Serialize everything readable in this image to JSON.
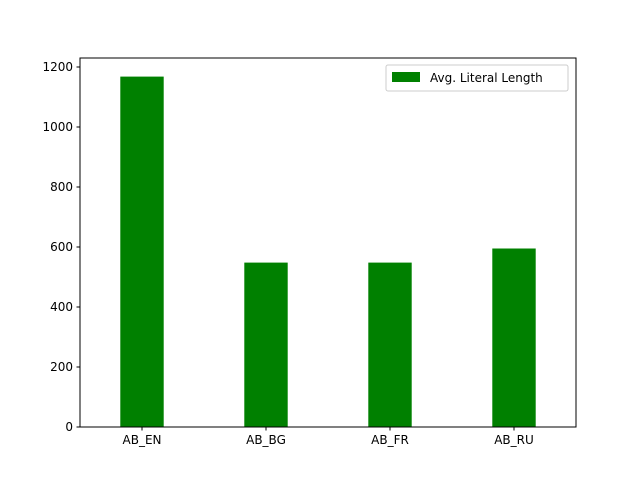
{
  "chart_data": {
    "type": "bar",
    "categories": [
      "AB_EN",
      "AB_BG",
      "AB_FR",
      "AB_RU"
    ],
    "series": [
      {
        "name": "Avg. Literal Length",
        "values": [
          1168,
          548,
          548,
          595
        ],
        "color": "#008000"
      }
    ],
    "ylim": [
      0,
      1230
    ],
    "yticks": [
      0,
      200,
      400,
      600,
      800,
      1000,
      1200
    ],
    "legend_position": "top-right",
    "grid": false
  }
}
